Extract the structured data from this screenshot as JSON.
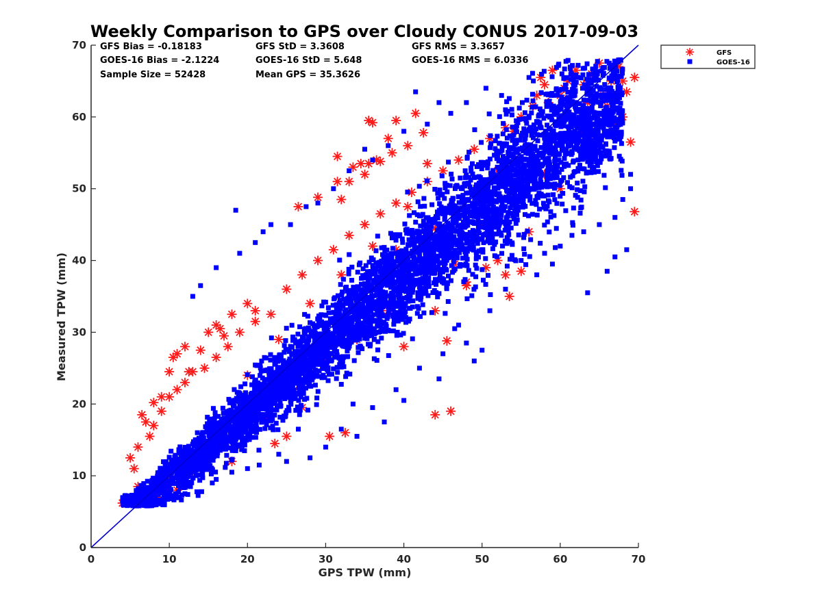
{
  "chart_data": {
    "type": "scatter",
    "title": "Weekly Comparison to GPS over Cloudy CONUS 2017-09-03",
    "xlabel": "GPS TPW (mm)",
    "ylabel": "Measured TPW (mm)",
    "xlim": [
      0,
      70
    ],
    "ylim": [
      0,
      70
    ],
    "x_ticks": [
      "0",
      "10",
      "20",
      "30",
      "40",
      "50",
      "60",
      "70"
    ],
    "y_ticks": [
      "0",
      "10",
      "20",
      "30",
      "40",
      "50",
      "60",
      "70"
    ],
    "grid": false,
    "legend_position": "outside-top-right",
    "reference_line": {
      "from": [
        0,
        0
      ],
      "to": [
        70,
        70
      ],
      "color": "#0000cc"
    },
    "stats": [
      {
        "text": "GFS Bias = -0.18183"
      },
      {
        "text": "GFS StD = 3.3608"
      },
      {
        "text": "GFS RMS = 3.3657"
      },
      {
        "text": "GOES-16 Bias = -2.1224"
      },
      {
        "text": "GOES-16 StD = 5.648"
      },
      {
        "text": "GOES-16 RMS = 6.0336"
      },
      {
        "text": "Sample Size = 52428"
      },
      {
        "text": "Mean GPS = 35.3626"
      }
    ],
    "series": [
      {
        "name": "GFS",
        "marker": "asterisk",
        "color": "#ff1a1a",
        "points": [
          [
            4,
            6.2
          ],
          [
            5,
            6.5
          ],
          [
            6.5,
            18.5
          ],
          [
            7,
            17.5
          ],
          [
            8,
            20.2
          ],
          [
            9,
            21
          ],
          [
            10,
            24.5
          ],
          [
            10.5,
            26.5
          ],
          [
            11,
            27
          ],
          [
            12,
            28
          ],
          [
            12.5,
            24.5
          ],
          [
            14,
            27.5
          ],
          [
            15,
            30
          ],
          [
            16,
            31
          ],
          [
            16.5,
            30.5
          ],
          [
            17,
            29.5
          ],
          [
            18,
            32.5
          ],
          [
            20,
            34
          ],
          [
            21,
            33
          ],
          [
            23.5,
            14.5
          ],
          [
            26.5,
            47.5
          ],
          [
            29,
            48.8
          ],
          [
            30.5,
            15.5
          ],
          [
            31.5,
            51
          ],
          [
            31.5,
            54.5
          ],
          [
            32,
            48.5
          ],
          [
            32.5,
            16
          ],
          [
            33,
            51
          ],
          [
            33.5,
            53
          ],
          [
            34.5,
            53.5
          ],
          [
            35,
            52
          ],
          [
            35.5,
            59.5
          ],
          [
            35.5,
            53.5
          ],
          [
            36,
            59.2
          ],
          [
            36.5,
            54
          ],
          [
            37,
            53.8
          ],
          [
            38,
            57
          ],
          [
            38.5,
            55
          ],
          [
            39,
            59.5
          ],
          [
            40.5,
            56
          ],
          [
            41.5,
            60.5
          ],
          [
            42.5,
            57.8
          ],
          [
            43,
            53.5
          ],
          [
            44,
            18.5
          ],
          [
            45.5,
            28.8
          ],
          [
            46,
            19
          ],
          [
            48,
            36.5
          ],
          [
            50.5,
            39
          ],
          [
            53,
            38
          ],
          [
            53.5,
            35
          ],
          [
            55,
            38.5
          ],
          [
            57,
            63
          ],
          [
            57.5,
            65.5
          ],
          [
            58.5,
            62
          ],
          [
            59,
            66.5
          ],
          [
            60,
            63
          ],
          [
            61,
            65
          ],
          [
            61.5,
            60
          ],
          [
            62,
            66.5
          ],
          [
            63,
            64.5
          ],
          [
            63.5,
            62
          ],
          [
            64,
            66
          ],
          [
            65,
            67.5
          ],
          [
            65.5,
            63
          ],
          [
            66,
            61.5
          ],
          [
            66.5,
            65
          ],
          [
            67,
            62.5
          ],
          [
            67.5,
            67
          ],
          [
            68,
            60
          ],
          [
            68,
            65
          ],
          [
            68.5,
            63.5
          ],
          [
            69,
            56.5
          ],
          [
            69.5,
            65.5
          ],
          [
            69.5,
            46.8
          ],
          [
            66.5,
            59
          ],
          [
            65,
            57
          ],
          [
            64,
            56.5
          ],
          [
            62.5,
            58
          ],
          [
            60.5,
            64
          ],
          [
            58,
            64.5
          ],
          [
            56.5,
            61.5
          ],
          [
            54,
            58
          ],
          [
            52,
            52.5
          ],
          [
            46.5,
            39.5
          ],
          [
            44,
            44.5
          ],
          [
            40.5,
            47.5
          ],
          [
            39,
            41.5
          ],
          [
            37,
            33
          ],
          [
            36,
            36
          ],
          [
            27,
            19.5
          ],
          [
            25,
            15.5
          ],
          [
            19,
            14
          ],
          [
            18,
            12
          ],
          [
            13,
            10.5
          ],
          [
            11,
            8
          ],
          [
            8.5,
            7
          ],
          [
            7,
            6.5
          ],
          [
            6,
            8.5
          ],
          [
            5.5,
            11
          ],
          [
            5,
            12.5
          ],
          [
            6,
            14
          ],
          [
            7.5,
            15.5
          ],
          [
            8,
            17
          ],
          [
            9,
            19
          ],
          [
            10,
            21
          ],
          [
            11,
            22
          ],
          [
            12,
            23
          ],
          [
            13,
            24.5
          ],
          [
            14.5,
            25
          ],
          [
            16,
            26.5
          ],
          [
            17.5,
            28
          ],
          [
            19,
            30
          ],
          [
            21,
            31.5
          ],
          [
            23,
            32.5
          ],
          [
            25,
            36
          ],
          [
            27,
            38
          ],
          [
            29,
            40
          ],
          [
            31,
            41.5
          ],
          [
            33,
            43.5
          ],
          [
            35,
            45
          ],
          [
            37,
            46.5
          ],
          [
            39,
            48
          ],
          [
            41,
            49.5
          ],
          [
            43,
            51
          ],
          [
            45,
            52.5
          ],
          [
            47,
            54
          ],
          [
            49,
            55.5
          ],
          [
            51,
            57
          ],
          [
            53,
            58.5
          ],
          [
            55,
            60
          ],
          [
            26,
            22
          ],
          [
            30,
            26
          ],
          [
            34,
            29
          ],
          [
            38,
            33
          ],
          [
            42,
            37
          ],
          [
            46,
            41
          ],
          [
            50,
            45
          ],
          [
            54,
            48
          ],
          [
            58,
            52
          ],
          [
            22,
            18
          ],
          [
            18,
            15
          ],
          [
            14,
            12.5
          ],
          [
            10,
            10
          ],
          [
            40,
            28
          ],
          [
            44,
            33
          ],
          [
            48,
            37
          ],
          [
            52,
            40
          ],
          [
            56,
            44
          ],
          [
            60,
            50
          ],
          [
            20,
            24
          ],
          [
            24,
            29
          ],
          [
            28,
            34
          ],
          [
            32,
            38
          ],
          [
            36,
            42
          ]
        ]
      },
      {
        "name": "GOES-16",
        "marker": "square",
        "color": "#0000ff",
        "outliers": [
          [
            18.5,
            47
          ],
          [
            27.5,
            47.5
          ],
          [
            25.5,
            45
          ],
          [
            22,
            44
          ],
          [
            35,
            55.5
          ],
          [
            41.5,
            63.5
          ],
          [
            44.5,
            62
          ],
          [
            50.5,
            64
          ],
          [
            52.5,
            63
          ],
          [
            56,
            65.5
          ],
          [
            63.5,
            35.5
          ],
          [
            66,
            38.5
          ],
          [
            67,
            40.5
          ],
          [
            68.5,
            41.5
          ],
          [
            61.5,
            43.5
          ],
          [
            59,
            39.5
          ],
          [
            57,
            38
          ],
          [
            46.5,
            30.5
          ],
          [
            48,
            28.5
          ],
          [
            50,
            27.5
          ],
          [
            49,
            26
          ],
          [
            44.5,
            23.5
          ],
          [
            40,
            20.5
          ],
          [
            37.5,
            17.5
          ],
          [
            34,
            15.5
          ],
          [
            33.5,
            20
          ],
          [
            30,
            14
          ],
          [
            28,
            12.5
          ],
          [
            26.5,
            16.5
          ],
          [
            24,
            13
          ],
          [
            21.5,
            11.5
          ],
          [
            18,
            10.5
          ],
          [
            15.5,
            9
          ],
          [
            12,
            7.5
          ],
          [
            10,
            6.8
          ],
          [
            13,
            35
          ],
          [
            14,
            36.5
          ],
          [
            16,
            39
          ],
          [
            19,
            41
          ],
          [
            21,
            42.5
          ],
          [
            23,
            45
          ],
          [
            29,
            48
          ],
          [
            31,
            50
          ],
          [
            33,
            52.5
          ],
          [
            36,
            54
          ],
          [
            38,
            56
          ],
          [
            40,
            58
          ],
          [
            43,
            59
          ],
          [
            46,
            60.5
          ],
          [
            48,
            62
          ],
          [
            53,
            61
          ],
          [
            69,
            52
          ],
          [
            69,
            50
          ],
          [
            68,
            48.5
          ],
          [
            67,
            46
          ],
          [
            65,
            45
          ],
          [
            63,
            44
          ],
          [
            60,
            42
          ],
          [
            58,
            41
          ],
          [
            55,
            40
          ],
          [
            53,
            36
          ],
          [
            51,
            33
          ],
          [
            47,
            31
          ],
          [
            45,
            27
          ],
          [
            42,
            25
          ],
          [
            39,
            22
          ],
          [
            36,
            19.5
          ],
          [
            32,
            16.5
          ],
          [
            25,
            12
          ],
          [
            20,
            11
          ],
          [
            16,
            9.5
          ]
        ]
      }
    ]
  },
  "legend": {
    "items": [
      {
        "label": "GFS",
        "color": "#ff1a1a",
        "marker": "asterisk"
      },
      {
        "label": "GOES-16",
        "color": "#0000ff",
        "marker": "square"
      }
    ]
  }
}
